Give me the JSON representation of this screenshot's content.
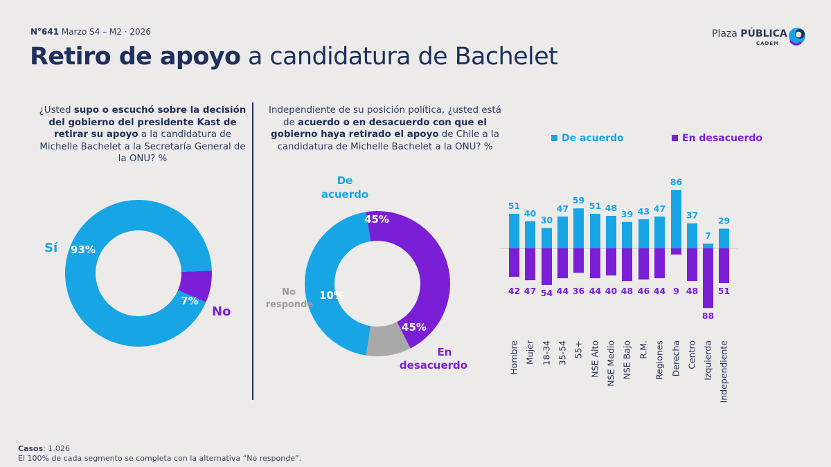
{
  "header": {
    "edition_code": "N°641",
    "edition_rest": " Marzo S4 – M2 · 2026",
    "title_bold": "Retiro de apoyo",
    "title_rest": " a candidatura de Bachelet",
    "brand_plain": "Plaza ",
    "brand_bold": "PÚBLICA",
    "brand_sub": "CADEM",
    "colors": {
      "accent_blue": "#17a5e6",
      "accent_purple": "#7b1fd6",
      "grey": "#a9a9a9",
      "navy": "#1e2f5b"
    },
    "logo_icon": "plaza-publica-logo-icon"
  },
  "question1": {
    "p1": "¿Usted ",
    "b1": "supo o escuchó sobre la decisión del gobierno del presidente Kast de retirar su apoyo",
    "p2": " a la candidatura de Michelle Bachelet a la Secretaría General de la ONU? %"
  },
  "question2": {
    "p1": "Independiente de su posición política, ¿usted está de ",
    "b1": "acuerdo o en desacuerdo con que el gobierno haya retirado el apoyo",
    "p2": " de Chile a la candidatura de Michelle Bachelet a la ONU? %"
  },
  "chart_data": [
    {
      "type": "pie",
      "slices": [
        {
          "label": "Sí",
          "value": 93,
          "value_label": "93%",
          "color": "#17a5e6"
        },
        {
          "label": "No",
          "value": 7,
          "value_label": "7%",
          "color": "#7b1fd6"
        }
      ]
    },
    {
      "type": "pie",
      "slices": [
        {
          "label_lines": [
            "De",
            "acuerdo"
          ],
          "value": 45,
          "value_label": "45%",
          "color": "#17a5e6"
        },
        {
          "label_lines": [
            "En",
            "desacuerdo"
          ],
          "value": 45,
          "value_label": "45%",
          "color": "#7b1fd6"
        },
        {
          "label_lines": [
            "No",
            "responde"
          ],
          "value": 10,
          "value_label": "10%",
          "color": "#a9a9a9"
        }
      ]
    },
    {
      "type": "bar",
      "categories": [
        "Hombre",
        "Mujer",
        "18-34",
        "35-54",
        "55+",
        "NSE Alto",
        "NSE Medio",
        "NSE Bajo",
        "R.M.",
        "Regiones",
        "Derecha",
        "Centro",
        "Izquierda",
        "Independiente"
      ],
      "groups": [
        [
          0,
          1
        ],
        [
          2,
          3,
          4
        ],
        [
          5,
          6,
          7
        ],
        [
          8,
          9
        ],
        [
          10,
          11,
          12,
          13
        ]
      ],
      "series": [
        {
          "name": "De acuerdo",
          "color": "#17a5e6",
          "values": [
            51,
            40,
            30,
            47,
            59,
            51,
            48,
            39,
            43,
            47,
            86,
            37,
            7,
            29
          ]
        },
        {
          "name": "En desacuerdo",
          "color": "#7b1fd6",
          "values": [
            42,
            47,
            54,
            44,
            36,
            44,
            40,
            48,
            46,
            44,
            9,
            48,
            88,
            51
          ]
        }
      ],
      "legend": "top"
    }
  ],
  "footer": {
    "cases_label": "Casos",
    "cases_value": ": 1.026",
    "note": "El 100% de cada segmento se completa con la alternativa “No responde”."
  }
}
